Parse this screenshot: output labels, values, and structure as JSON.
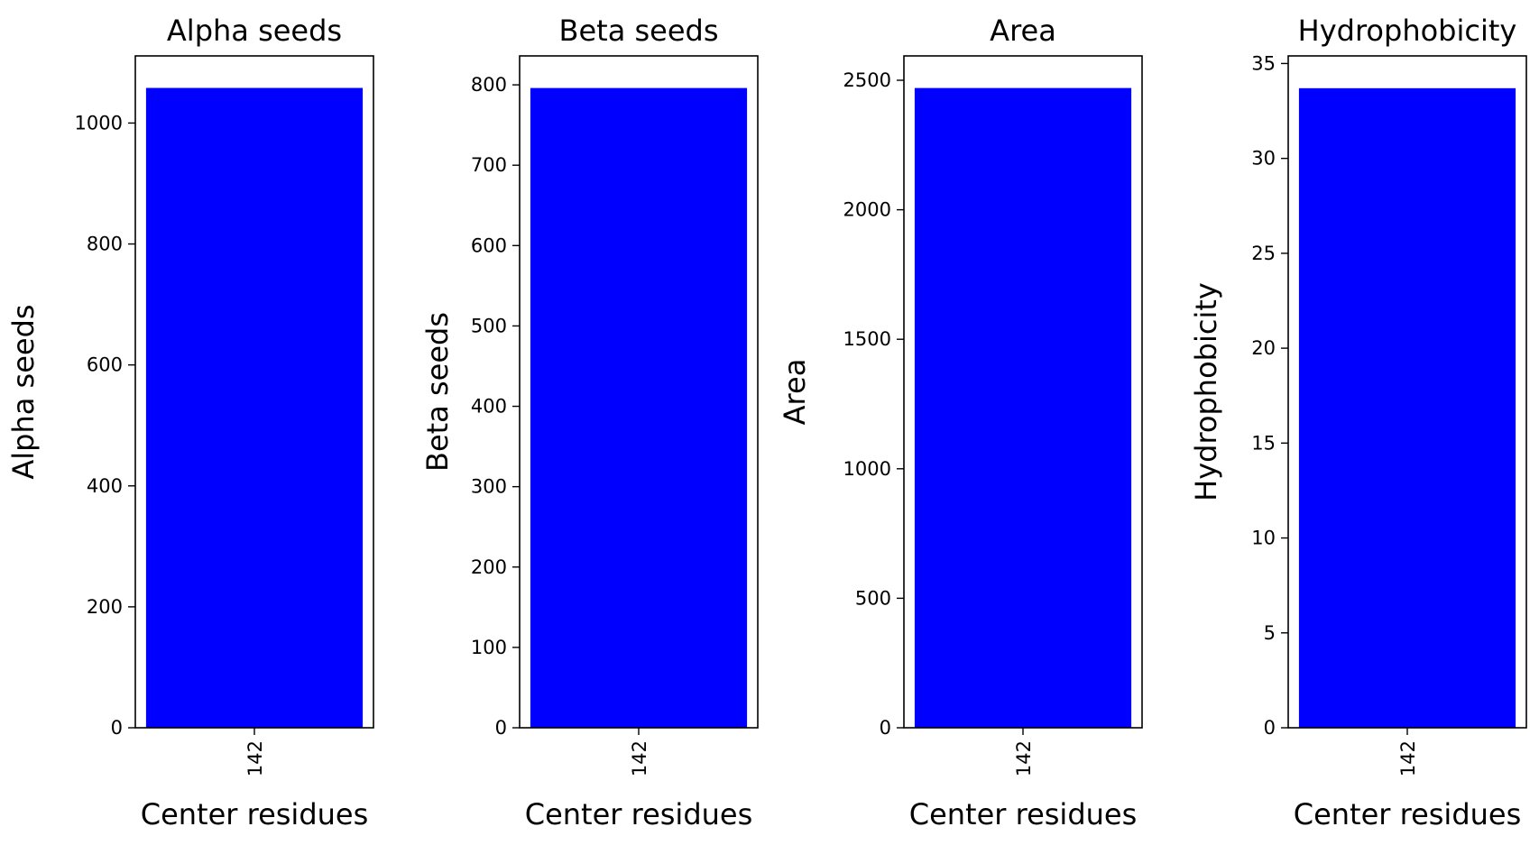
{
  "colors": {
    "bar": "#0000ff",
    "axis": "#000000",
    "background": "#ffffff"
  },
  "chart_data": [
    {
      "type": "bar",
      "title": "Alpha seeds",
      "xlabel": "Center residues",
      "ylabel": "Alpha seeds",
      "categories": [
        "142"
      ],
      "values": [
        1058
      ],
      "ylim": [
        0,
        1111
      ],
      "yticks": [
        0,
        200,
        400,
        600,
        800,
        1000
      ],
      "grid": false
    },
    {
      "type": "bar",
      "title": "Beta seeds",
      "xlabel": "Center residues",
      "ylabel": "Beta seeds",
      "categories": [
        "142"
      ],
      "values": [
        796
      ],
      "ylim": [
        0,
        836
      ],
      "yticks": [
        0,
        100,
        200,
        300,
        400,
        500,
        600,
        700,
        800
      ],
      "grid": false
    },
    {
      "type": "bar",
      "title": "Area",
      "xlabel": "Center residues",
      "ylabel": "Area",
      "categories": [
        "142"
      ],
      "values": [
        2470
      ],
      "ylim": [
        0,
        2594
      ],
      "yticks": [
        0,
        500,
        1000,
        1500,
        2000,
        2500
      ],
      "grid": false
    },
    {
      "type": "bar",
      "title": "Hydrophobicity",
      "xlabel": "Center residues",
      "ylabel": "Hydrophobicity",
      "categories": [
        "142"
      ],
      "values": [
        33.7
      ],
      "ylim": [
        0,
        35.4
      ],
      "yticks": [
        0,
        5,
        10,
        15,
        20,
        25,
        30,
        35
      ],
      "grid": false
    }
  ]
}
